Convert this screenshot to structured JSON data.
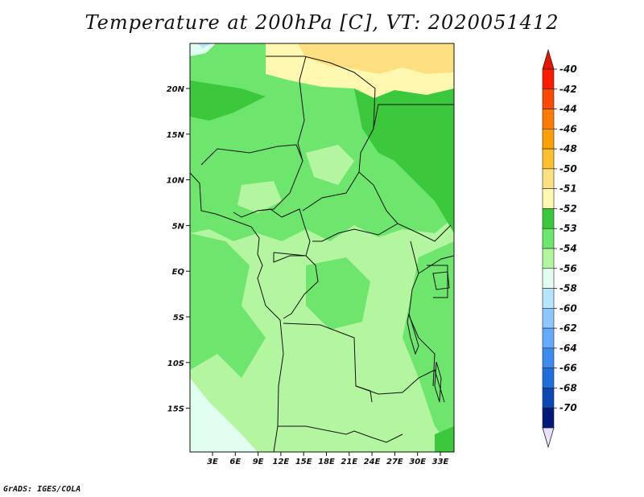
{
  "title": "Temperature at 200hPa [C], VT: 2020051412",
  "footer": "GrADS: IGES/COLA",
  "map": {
    "lat_labels": [
      "20N",
      "15N",
      "10N",
      "5N",
      "EQ",
      "5S",
      "10S",
      "15S"
    ],
    "lon_labels": [
      "3E",
      "6E",
      "9E",
      "12E",
      "15E",
      "18E",
      "21E",
      "24E",
      "27E",
      "30E",
      "33E"
    ]
  },
  "colorbar": {
    "labels": [
      "-40",
      "-42",
      "-44",
      "-46",
      "-48",
      "-50",
      "-51",
      "-52",
      "-53",
      "-54",
      "-56",
      "-58",
      "-60",
      "-62",
      "-64",
      "-66",
      "-68",
      "-70"
    ],
    "colors": [
      "#ff1a00",
      "#ff4a00",
      "#ff7a00",
      "#ffa000",
      "#ffc030",
      "#ffe080",
      "#fff8b0",
      "#3cc83c",
      "#6ee66e",
      "#b4f5a0",
      "#e0fff0",
      "#b4e6ff",
      "#8cc8ff",
      "#64aaff",
      "#3c8cf0",
      "#1e6edc",
      "#0a46b4",
      "#00187a"
    ],
    "top_arrow_color": "#e81400",
    "bottom_arrow_color": "#e8e0ff"
  }
}
